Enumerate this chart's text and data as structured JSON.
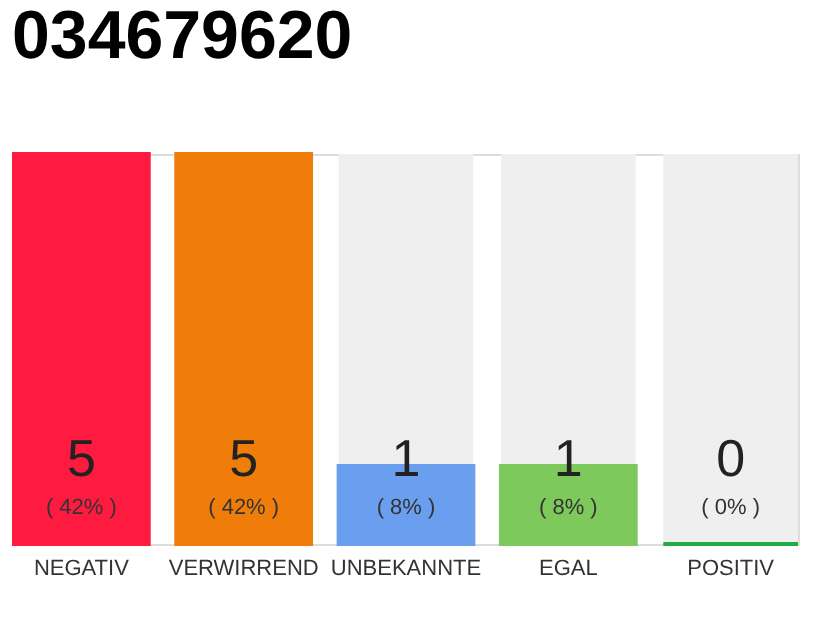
{
  "chart_data": {
    "type": "bar",
    "title": "034679620",
    "categories": [
      "NEGATIV",
      "VERWIRREND",
      "UNBEKANNTE",
      "EGAL",
      "POSITIV"
    ],
    "values": [
      5,
      5,
      1,
      1,
      0
    ],
    "colors": [
      "#ff1a40",
      "#f07d0a",
      "#6a9ff0",
      "#7dc95c",
      "#22aa44"
    ],
    "data_labels": true,
    "annotations": [
      "( 42% )",
      "( 42% )",
      "( 8% )",
      "( 8% )",
      "( 0% )"
    ]
  }
}
